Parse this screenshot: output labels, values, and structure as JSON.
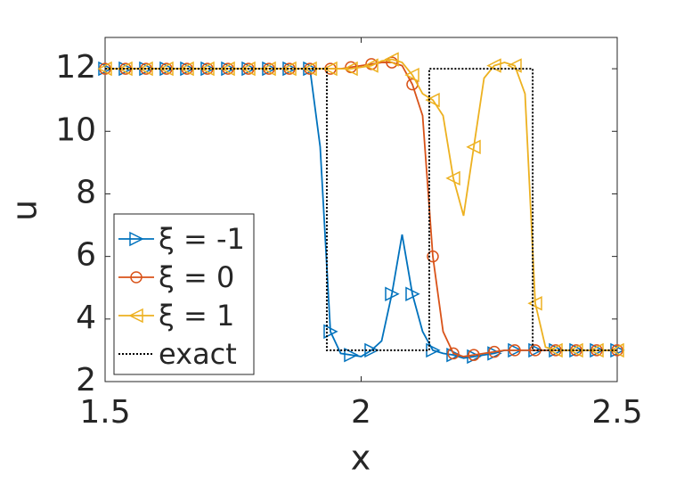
{
  "chart_data": {
    "type": "line",
    "xlabel": "x",
    "ylabel": "u",
    "xlim": [
      1.5,
      2.5
    ],
    "ylim": [
      2,
      13
    ],
    "xticks": [
      1.5,
      2,
      2.5
    ],
    "yticks": [
      2,
      4,
      6,
      8,
      10,
      12
    ],
    "x": [
      1.5,
      1.52,
      1.54,
      1.56,
      1.58,
      1.6,
      1.62,
      1.64,
      1.66,
      1.68,
      1.7,
      1.72,
      1.74,
      1.76,
      1.78,
      1.8,
      1.82,
      1.84,
      1.86,
      1.88,
      1.9,
      1.92,
      1.94,
      1.96,
      1.98,
      2.0,
      2.02,
      2.04,
      2.06,
      2.08,
      2.1,
      2.12,
      2.14,
      2.16,
      2.18,
      2.2,
      2.22,
      2.24,
      2.26,
      2.28,
      2.3,
      2.32,
      2.34,
      2.36,
      2.38,
      2.4,
      2.42,
      2.44,
      2.46,
      2.48,
      2.5
    ],
    "series": [
      {
        "name": "ξ = -1",
        "color": "#0072BD",
        "marker": "triangle-right",
        "values": [
          12,
          12,
          12,
          12,
          12,
          12,
          12,
          12,
          12,
          12,
          12,
          12,
          12,
          12,
          12,
          12,
          12,
          12,
          12,
          12,
          12,
          9.5,
          3.6,
          2.9,
          2.85,
          2.8,
          3.0,
          3.3,
          4.8,
          6.7,
          4.8,
          3.6,
          3.0,
          2.9,
          2.85,
          2.75,
          2.8,
          2.85,
          2.9,
          3.0,
          3,
          3,
          3,
          3,
          3,
          3,
          3,
          3,
          3,
          3,
          3
        ]
      },
      {
        "name": "ξ = 0",
        "color": "#D95319",
        "marker": "circle",
        "values": [
          12,
          12,
          12,
          12,
          12,
          12,
          12,
          12,
          12,
          12,
          12,
          12,
          12,
          12,
          12,
          12,
          12,
          12,
          12,
          12,
          12,
          12,
          12,
          12,
          12.05,
          12.1,
          12.15,
          12.2,
          12.2,
          12.1,
          11.5,
          10.5,
          6,
          3.6,
          2.9,
          2.8,
          2.85,
          2.9,
          2.95,
          3,
          3,
          3,
          3,
          3,
          3,
          3,
          3,
          3,
          3,
          3,
          3
        ]
      },
      {
        "name": "ξ = 1",
        "color": "#EDB120",
        "marker": "triangle-left",
        "values": [
          12,
          12,
          12,
          12,
          12,
          12,
          12,
          12,
          12,
          12,
          12,
          12,
          12,
          12,
          12,
          12,
          12,
          12,
          12,
          12,
          12,
          12,
          12,
          12,
          12.0,
          12.05,
          12.1,
          12.25,
          12.3,
          12.2,
          11.8,
          11.2,
          11.0,
          10.5,
          8.5,
          7.3,
          9.5,
          11.7,
          12.1,
          12.2,
          12.1,
          11.2,
          4.5,
          3.1,
          3,
          3,
          3,
          3,
          3,
          3,
          3
        ]
      },
      {
        "name": "exact",
        "color": "#000000",
        "dashed": true,
        "x": [
          1.5,
          1.933,
          1.933,
          2.133,
          2.133,
          2.335,
          2.335,
          2.5
        ],
        "values": [
          12,
          12,
          3,
          3,
          12,
          12,
          3,
          3
        ]
      }
    ]
  }
}
